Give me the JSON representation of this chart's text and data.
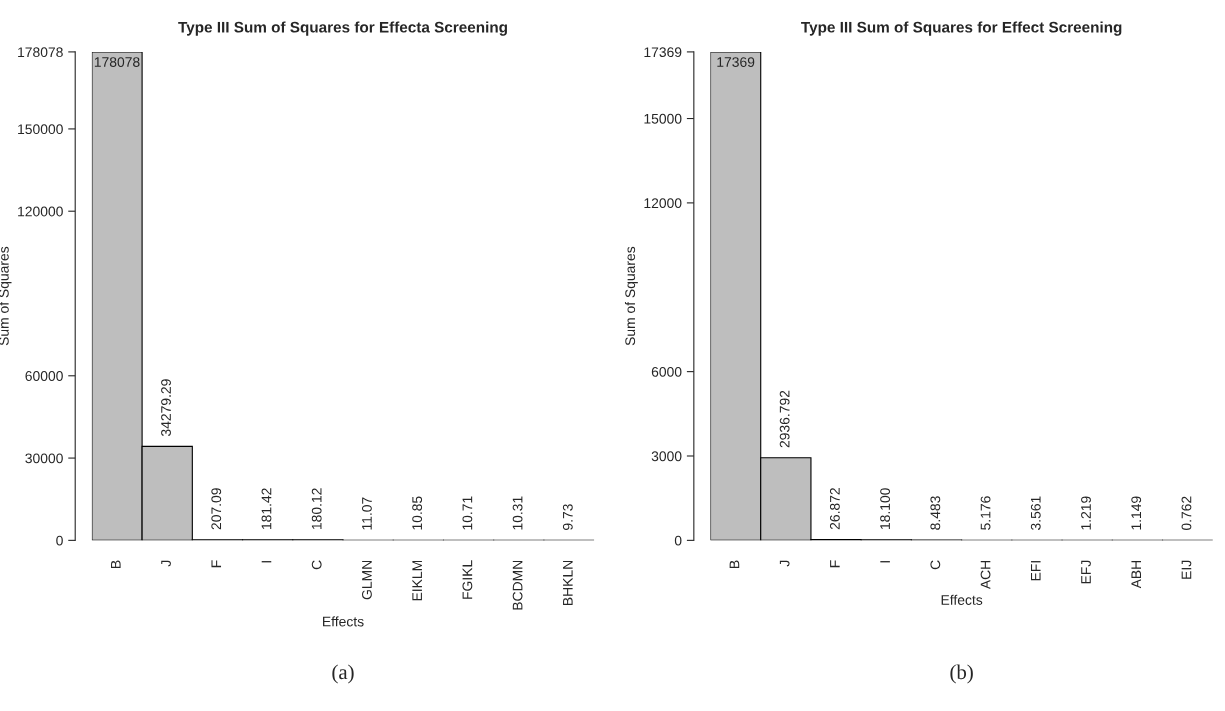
{
  "chart_data": [
    {
      "type": "bar",
      "title": "Type III Sum of Squares for Effecta Screening",
      "xlabel": "Effects",
      "ylabel": "Sum of Squares",
      "categories": [
        "B",
        "J",
        "F",
        "I",
        "C",
        "GLMN",
        "EIKLM",
        "FGIKL",
        "BCDMN",
        "BHKLN"
      ],
      "series": [
        {
          "color": "#bebebe",
          "values": [
            178078,
            34279.29,
            207.09,
            181.42,
            180.12,
            11.07,
            10.85,
            10.71,
            10.31,
            9.73
          ],
          "value_labels": [
            "178078",
            "34279.29",
            "207.09",
            "181.42",
            "180.12",
            "11.07",
            "10.85",
            "10.71",
            "10.31",
            "9.73"
          ]
        }
      ],
      "ylim": [
        0,
        178078
      ],
      "yticks": [
        0,
        30000,
        60000,
        120000,
        150000,
        178078
      ],
      "grid": false,
      "legend": false,
      "annotations": [
        "(a)"
      ]
    },
    {
      "type": "bar",
      "title": "Type III Sum of Squares for Effect Screening",
      "xlabel": "Effects",
      "ylabel": "Sum of Squares",
      "categories": [
        "B",
        "J",
        "F",
        "I",
        "C",
        "ACH",
        "EFI",
        "EFJ",
        "ABH",
        "EIJ"
      ],
      "series": [
        {
          "color": "#bebebe",
          "values": [
            17369,
            2936.792,
            26.872,
            18.1,
            8.483,
            5.176,
            3.561,
            1.219,
            1.149,
            0.762
          ],
          "value_labels": [
            "17369",
            "2936.792",
            "26.872",
            "18.100",
            "8.483",
            "5.176",
            "3.561",
            "1.219",
            "1.149",
            "0.762"
          ]
        }
      ],
      "ylim": [
        0,
        17369
      ],
      "yticks": [
        0,
        3000,
        6000,
        12000,
        15000,
        17369
      ],
      "grid": false,
      "legend": false,
      "annotations": [
        "(b)"
      ]
    }
  ]
}
